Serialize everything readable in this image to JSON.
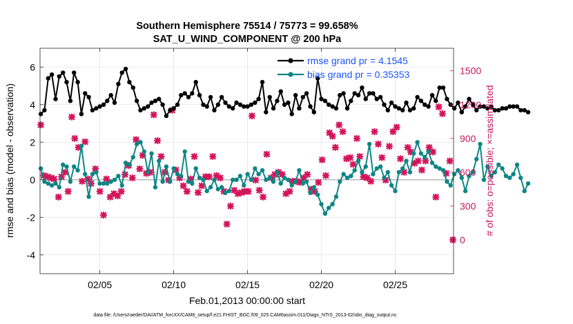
{
  "chart_data": {
    "type": "line",
    "title_line1": "Southern Hemisphere 75514 / 75773 = 99.658%",
    "title_line2": "SAT_U_WIND_COMPONENT @ 200 hPa",
    "xlabel": "Feb.01,2013 00:00:00 start",
    "ylabel_left": "rmse and bias (model - observation)",
    "ylabel_right": "# of obs: o=possible; ×=assimilated",
    "footnote": "data file: /Users/raeder/DAI/ATM_forcXX/CAM6_setup/f.e21.FHIST_BGC.f09_025.CAM6assim.011/Diags_NTrS_2013-02/obs_diag_output.nc",
    "xlim": [
      0.95,
      28.95
    ],
    "ylim_left": [
      -5,
      7
    ],
    "ylim_right": [
      -300,
      1700
    ],
    "x_ticks": [
      {
        "value": 5,
        "label": "02/05"
      },
      {
        "value": 10,
        "label": "02/10"
      },
      {
        "value": 15,
        "label": "02/15"
      },
      {
        "value": 20,
        "label": "02/20"
      },
      {
        "value": 25,
        "label": "02/25"
      }
    ],
    "y_ticks_left": [
      {
        "value": -4,
        "label": "-4"
      },
      {
        "value": -2,
        "label": "-2"
      },
      {
        "value": 0,
        "label": "0"
      },
      {
        "value": 2,
        "label": "2"
      },
      {
        "value": 4,
        "label": "4"
      },
      {
        "value": 6,
        "label": "6"
      }
    ],
    "y_ticks_right": [
      {
        "value": 0,
        "label": "0"
      },
      {
        "value": 300,
        "label": "300"
      },
      {
        "value": 600,
        "label": "600"
      },
      {
        "value": 900,
        "label": "900"
      },
      {
        "value": 1200,
        "label": "1200"
      },
      {
        "value": 1500,
        "label": "1500"
      }
    ],
    "zero_line": 0,
    "x_start": 1.0,
    "x_step": 0.25,
    "series": [
      {
        "name": "rmse grand pr = 4.1545",
        "color": "#000000",
        "axis": "left",
        "values": [
          3.5,
          3.7,
          5.4,
          5.6,
          4.3,
          5.5,
          5.7,
          5.2,
          4.2,
          5.7,
          5.2,
          3.5,
          4.6,
          4.4,
          3.7,
          3.8,
          3.9,
          4.0,
          4.2,
          4.5,
          4.1,
          5.1,
          5.7,
          5.9,
          5.2,
          4.9,
          4.2,
          3.7,
          3.8,
          3.9,
          4.1,
          4.2,
          4.3,
          4.0,
          3.4,
          3.7,
          3.8,
          4.0,
          4.5,
          4.6,
          4.4,
          4.6,
          5.2,
          4.5,
          4.0,
          3.9,
          4.4,
          3.7,
          4.0,
          4.4,
          4.1,
          3.9,
          3.8,
          4.1,
          4.0,
          3.9,
          3.9,
          4.0,
          4.1,
          4.3,
          5.2,
          3.6,
          4.4,
          3.8,
          4.2,
          4.7,
          4.0,
          4.1,
          3.5,
          4.5,
          3.8,
          4.4,
          4.6,
          3.9,
          3.6,
          5.4,
          4.3,
          4.2,
          4.0,
          3.9,
          3.8,
          4.5,
          4.6,
          3.8,
          4.2,
          4.6,
          4.5,
          4.9,
          4.3,
          4.6,
          4.6,
          4.3,
          4.4,
          4.0,
          3.7,
          4.1,
          3.9,
          3.8,
          3.7,
          4.1,
          3.7,
          3.8,
          4.4,
          4.2,
          4.0,
          3.9,
          4.5,
          4.2,
          4.9,
          4.9,
          4.3,
          4.0,
          3.8,
          4.1,
          3.6,
          3.9,
          4.3,
          4.0,
          3.7,
          3.9,
          3.9,
          3.8,
          3.9,
          3.7,
          3.7,
          3.8,
          3.8,
          3.9,
          3.9,
          3.9,
          3.7,
          3.7,
          3.6
        ]
      },
      {
        "name": "bias grand pr = 0.35353",
        "color": "#0e8585",
        "axis": "left",
        "values": [
          0.6,
          -0.1,
          -0.2,
          -0.3,
          -0.2,
          -0.4,
          0.8,
          0.7,
          -0.1,
          0.7,
          0.5,
          1.8,
          0.3,
          -0.9,
          0.3,
          0.4,
          -0.2,
          -0.2,
          -0.2,
          -0.1,
          0.0,
          0.2,
          -0.3,
          0.9,
          0.8,
          1.2,
          1.9,
          2.0,
          1.5,
          0.4,
          1.4,
          -0.4,
          1.0,
          -0.1,
          0.7,
          -0.1,
          0.6,
          0.3,
          0.2,
          1.5,
          -0.1,
          -0.2,
          0.6,
          0.1,
          0.0,
          -0.6,
          -0.4,
          0.0,
          -0.5,
          -0.4,
          -0.7,
          -0.6,
          0.0,
          0.0,
          0.2,
          -0.3,
          0.3,
          0.0,
          0.6,
          0.3,
          0.5,
          0.0,
          0.1,
          -0.1,
          0.4,
          -0.2,
          0.1,
          0.0,
          -0.3,
          -0.1,
          0.5,
          -0.2,
          -0.1,
          -0.7,
          -0.4,
          -0.8,
          -1.3,
          -1.8,
          -1.5,
          -1.3,
          -0.9,
          -0.1,
          0.3,
          0.1,
          0.2,
          0.5,
          1.0,
          0.4,
          0.7,
          1.9,
          0.3,
          0.6,
          0.7,
          0.1,
          0.4,
          -0.3,
          -0.6,
          0.4,
          0.6,
          1.0,
          0.4,
          1.4,
          2.0,
          1.4,
          1.2,
          1.5,
          0.9,
          0.7,
          0.6,
          0.5,
          -0.1,
          -0.3,
          0.3,
          0.5,
          0.1,
          -0.6,
          0.2,
          0.4,
          1.1,
          1.9,
          0.0,
          0.7,
          0.2,
          0.4,
          0.8,
          0.6,
          0.2,
          0.1,
          0.3,
          0.8,
          0.1,
          -0.6,
          -0.2
        ]
      }
    ],
    "obs_series": {
      "name": "# of obs assimilated",
      "marker": "×",
      "color": "#d4145a",
      "axis": "right",
      "points": [
        [
          1.0,
          1020
        ],
        [
          1.2,
          570
        ],
        [
          1.45,
          560
        ],
        [
          1.7,
          550
        ],
        [
          1.9,
          540
        ],
        [
          2.2,
          380
        ],
        [
          2.4,
          560
        ],
        [
          2.65,
          600
        ],
        [
          2.85,
          430
        ],
        [
          3.1,
          1090
        ],
        [
          3.3,
          900
        ],
        [
          3.55,
          820
        ],
        [
          3.8,
          520
        ],
        [
          4.0,
          870
        ],
        [
          4.2,
          540
        ],
        [
          4.4,
          500
        ],
        [
          4.7,
          630
        ],
        [
          5.0,
          430
        ],
        [
          5.25,
          220
        ],
        [
          5.45,
          540
        ],
        [
          5.7,
          380
        ],
        [
          5.95,
          410
        ],
        [
          6.2,
          390
        ],
        [
          6.45,
          430
        ],
        [
          6.7,
          580
        ],
        [
          6.95,
          660
        ],
        [
          7.2,
          550
        ],
        [
          7.45,
          890
        ],
        [
          7.7,
          630
        ],
        [
          7.9,
          750
        ],
        [
          8.15,
          590
        ],
        [
          8.4,
          600
        ],
        [
          8.65,
          1110
        ],
        [
          8.9,
          880
        ],
        [
          9.15,
          740
        ],
        [
          9.4,
          600
        ],
        [
          9.65,
          530
        ],
        [
          9.9,
          1150
        ],
        [
          10.15,
          620
        ],
        [
          10.4,
          550
        ],
        [
          10.65,
          480
        ],
        [
          10.9,
          430
        ],
        [
          11.15,
          540
        ],
        [
          11.4,
          740
        ],
        [
          11.65,
          420
        ],
        [
          11.9,
          480
        ],
        [
          12.15,
          560
        ],
        [
          12.4,
          560
        ],
        [
          12.65,
          740
        ],
        [
          12.9,
          570
        ],
        [
          13.15,
          550
        ],
        [
          13.4,
          430
        ],
        [
          13.6,
          140
        ],
        [
          13.85,
          300
        ],
        [
          14.1,
          440
        ],
        [
          14.35,
          410
        ],
        [
          14.6,
          420
        ],
        [
          14.8,
          430
        ],
        [
          15.05,
          430
        ],
        [
          15.3,
          1100
        ],
        [
          15.55,
          530
        ],
        [
          15.8,
          440
        ],
        [
          16.05,
          380
        ],
        [
          16.3,
          760
        ],
        [
          16.6,
          550
        ],
        [
          16.85,
          580
        ],
        [
          17.1,
          600
        ],
        [
          17.35,
          580
        ],
        [
          17.6,
          410
        ],
        [
          17.85,
          430
        ],
        [
          18.05,
          520
        ],
        [
          18.3,
          520
        ],
        [
          18.55,
          510
        ],
        [
          18.8,
          550
        ],
        [
          19.05,
          580
        ],
        [
          19.3,
          450
        ],
        [
          19.55,
          430
        ],
        [
          19.8,
          510
        ],
        [
          20.05,
          710
        ],
        [
          20.3,
          570
        ],
        [
          20.55,
          950
        ],
        [
          20.75,
          920
        ],
        [
          20.95,
          820
        ],
        [
          21.2,
          1020
        ],
        [
          21.45,
          960
        ],
        [
          21.7,
          720
        ],
        [
          21.95,
          730
        ],
        [
          22.15,
          670
        ],
        [
          22.4,
          900
        ],
        [
          22.6,
          740
        ],
        [
          22.85,
          560
        ],
        [
          23.1,
          550
        ],
        [
          23.35,
          520
        ],
        [
          23.6,
          960
        ],
        [
          23.85,
          850
        ],
        [
          24.1,
          730
        ],
        [
          24.35,
          530
        ],
        [
          24.6,
          830
        ],
        [
          24.85,
          960
        ],
        [
          25.1,
          1000
        ],
        [
          25.35,
          720
        ],
        [
          25.6,
          600
        ],
        [
          25.85,
          820
        ],
        [
          26.05,
          780
        ],
        [
          26.3,
          680
        ],
        [
          26.55,
          700
        ],
        [
          26.8,
          620
        ],
        [
          27.05,
          700
        ],
        [
          27.3,
          820
        ],
        [
          27.55,
          780
        ],
        [
          27.75,
          380
        ],
        [
          27.95,
          1180
        ],
        [
          28.2,
          1120
        ],
        [
          28.45,
          590
        ],
        [
          28.7,
          700
        ],
        [
          28.9,
          0
        ]
      ]
    },
    "legend": {
      "location": "top-right",
      "entries": [
        {
          "label": "rmse grand pr = 4.1545",
          "text_color": "#1a53ff",
          "line_color": "#000000"
        },
        {
          "label": "bias grand pr = 0.35353",
          "text_color": "#1a53ff",
          "line_color": "#0e8585"
        }
      ]
    },
    "grid": true
  }
}
